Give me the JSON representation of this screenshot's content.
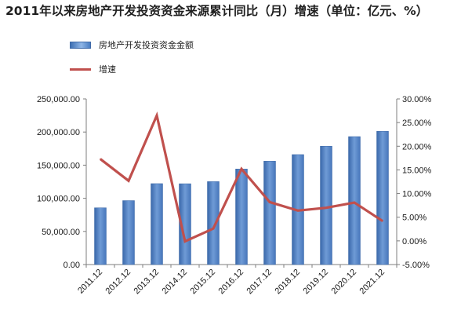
{
  "title": "2011年以来房地产开发投资资金来源累计同比（月）增速（单位：亿元、%）",
  "colors": {
    "bar": "#4a7dc2",
    "line": "#c0504d",
    "axis": "#7f7f7f"
  },
  "chart_data": {
    "type": "bar",
    "title": "2011年以来房地产开发投资资金来源累计同比（月）增速（单位：亿元、%）",
    "categories": [
      "2011.12",
      "2012.12",
      "2013.12",
      "2014.12",
      "2015.12",
      "2016.12",
      "2017.12",
      "2018.12",
      "2019.12",
      "2020.12",
      "2021.12"
    ],
    "series": [
      {
        "name": "房地产开发投资资金金额",
        "type": "bar",
        "axis": "left",
        "values": [
          85689,
          96536,
          122122,
          121991,
          125203,
          144214,
          156053,
          165963,
          178609,
          193115,
          201132
        ]
      },
      {
        "name": "增速",
        "type": "line",
        "axis": "right",
        "values": [
          17.3,
          12.7,
          26.5,
          -0.1,
          2.6,
          15.2,
          8.2,
          6.4,
          7.0,
          8.1,
          4.2
        ]
      }
    ],
    "y_left": {
      "min": 0,
      "max": 250000,
      "ticks": [
        "0.00",
        "50,000.00",
        "100,000.00",
        "150,000.00",
        "200,000.00",
        "250,000.00"
      ]
    },
    "y_right": {
      "min": -5,
      "max": 30,
      "ticks": [
        "-5.00%",
        "0.00%",
        "5.00%",
        "10.00%",
        "15.00%",
        "20.00%",
        "25.00%",
        "30.00%"
      ]
    },
    "grid": false,
    "legend_position": "top-left"
  }
}
